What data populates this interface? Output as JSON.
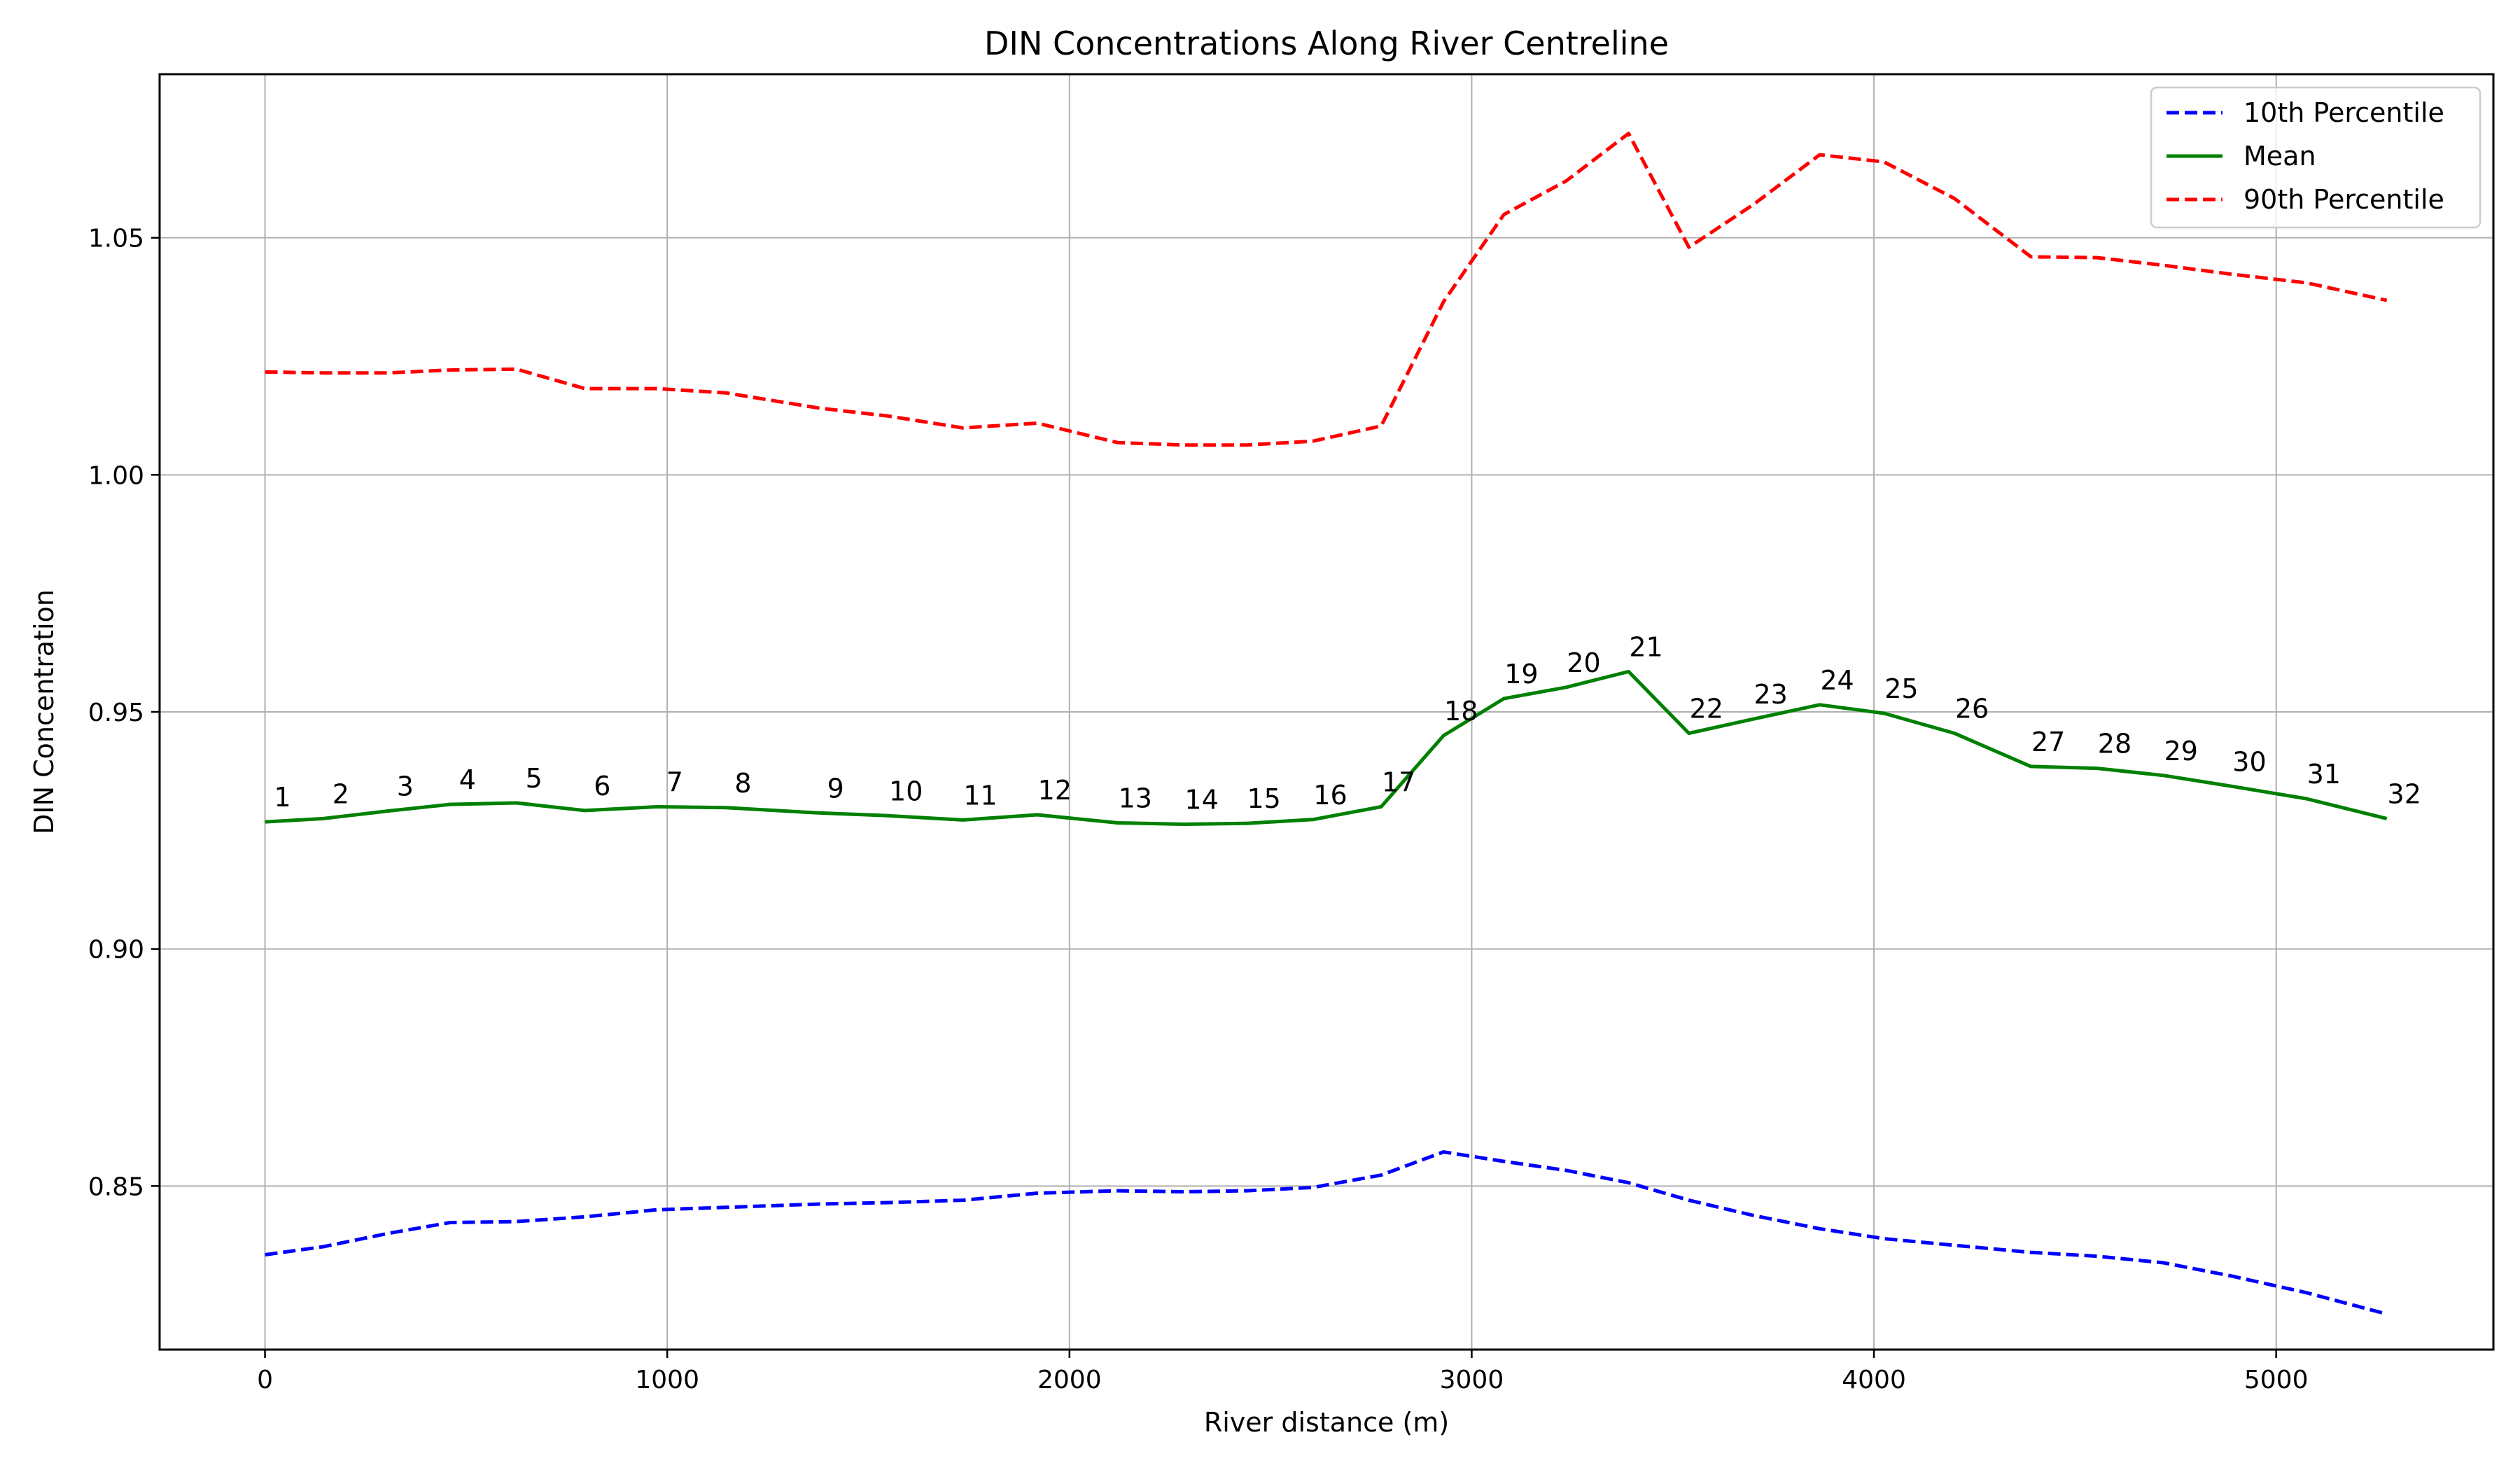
{
  "chart_data": {
    "type": "line",
    "title": "DIN Concentrations Along River Centreline",
    "xlabel": "River distance (m)",
    "ylabel": "DIN Concentration",
    "xlim": [
      -262,
      5540
    ],
    "ylim": [
      0.8155,
      1.0845
    ],
    "xticks": [
      0,
      1000,
      2000,
      3000,
      4000,
      5000
    ],
    "xtick_labels": [
      "0",
      "1000",
      "2000",
      "3000",
      "4000",
      "5000"
    ],
    "yticks": [
      0.85,
      0.9,
      0.95,
      1.0,
      1.05
    ],
    "ytick_labels": [
      "0.85",
      "0.90",
      "0.95",
      "1.00",
      "1.05"
    ],
    "grid": true,
    "legend_position": "top-right",
    "x": [
      0,
      145,
      305,
      460,
      625,
      795,
      975,
      1145,
      1375,
      1550,
      1735,
      1920,
      2120,
      2285,
      2440,
      2605,
      2775,
      2930,
      3080,
      3235,
      3390,
      3540,
      3700,
      3865,
      4025,
      4200,
      4390,
      4555,
      4720,
      4890,
      5075,
      5275
    ],
    "point_labels": [
      "1",
      "2",
      "3",
      "4",
      "5",
      "6",
      "7",
      "8",
      "9",
      "10",
      "11",
      "12",
      "13",
      "14",
      "15",
      "16",
      "17",
      "18",
      "19",
      "20",
      "21",
      "22",
      "23",
      "24",
      "25",
      "26",
      "27",
      "28",
      "29",
      "30",
      "31",
      "32"
    ],
    "series": [
      {
        "name": "10th Percentile",
        "color": "#0000ff",
        "style": "dashed",
        "values": [
          0.8355,
          0.8372,
          0.84,
          0.8423,
          0.8425,
          0.8435,
          0.845,
          0.8455,
          0.8462,
          0.8465,
          0.847,
          0.8485,
          0.849,
          0.8488,
          0.849,
          0.8497,
          0.8523,
          0.8572,
          0.8552,
          0.8533,
          0.8507,
          0.847,
          0.8438,
          0.841,
          0.8389,
          0.8375,
          0.836,
          0.8352,
          0.8338,
          0.831,
          0.8275,
          0.823
        ]
      },
      {
        "name": "Mean",
        "color": "#008000",
        "style": "solid",
        "values": [
          0.9268,
          0.9275,
          0.9291,
          0.9305,
          0.9308,
          0.9292,
          0.93,
          0.9298,
          0.9287,
          0.9281,
          0.9272,
          0.9283,
          0.9266,
          0.9263,
          0.9265,
          0.9273,
          0.93,
          0.945,
          0.9528,
          0.9552,
          0.9585,
          0.9455,
          0.9485,
          0.9515,
          0.9497,
          0.9455,
          0.9385,
          0.9381,
          0.9366,
          0.9343,
          0.9317,
          0.9275
        ]
      },
      {
        "name": "90th Percentile",
        "color": "#ff0000",
        "style": "dashed",
        "values": [
          1.0217,
          1.0215,
          1.0215,
          1.0221,
          1.0223,
          1.0182,
          1.0182,
          1.0173,
          1.0141,
          1.0124,
          1.0099,
          1.0109,
          1.0068,
          1.0063,
          1.0063,
          1.0071,
          1.0103,
          1.0365,
          1.0549,
          1.062,
          1.072,
          1.048,
          1.057,
          1.0675,
          1.066,
          1.0583,
          1.046,
          1.0458,
          1.0442,
          1.0423,
          1.0405,
          1.0368
        ]
      }
    ]
  }
}
